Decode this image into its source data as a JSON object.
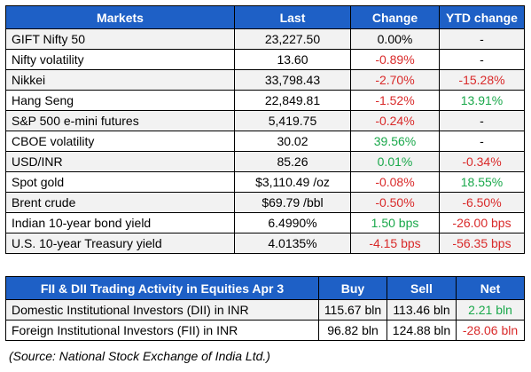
{
  "markets": {
    "headers": [
      "Markets",
      "Last",
      "Change",
      "YTD change"
    ],
    "rows": [
      {
        "name": "GIFT Nifty 50",
        "last": "23,227.50",
        "change": "0.00%",
        "change_tone": "neu",
        "ytd": "-",
        "ytd_tone": "neu"
      },
      {
        "name": "Nifty volatility",
        "last": "13.60",
        "change": "-0.89%",
        "change_tone": "neg",
        "ytd": "-",
        "ytd_tone": "neu"
      },
      {
        "name": "Nikkei",
        "last": "33,798.43",
        "change": "-2.70%",
        "change_tone": "neg",
        "ytd": "-15.28%",
        "ytd_tone": "neg"
      },
      {
        "name": "Hang Seng",
        "last": "22,849.81",
        "change": "-1.52%",
        "change_tone": "neg",
        "ytd": "13.91%",
        "ytd_tone": "pos"
      },
      {
        "name": "S&P 500 e-mini futures",
        "last": "5,419.75",
        "change": "-0.24%",
        "change_tone": "neg",
        "ytd": "-",
        "ytd_tone": "neu"
      },
      {
        "name": "CBOE volatility",
        "last": "30.02",
        "change": "39.56%",
        "change_tone": "pos",
        "ytd": "-",
        "ytd_tone": "neu"
      },
      {
        "name": "USD/INR",
        "last": "85.26",
        "change": "0.01%",
        "change_tone": "pos",
        "ytd": "-0.34%",
        "ytd_tone": "neg"
      },
      {
        "name": "Spot gold",
        "last": "$3,110.49 /oz",
        "change": "-0.08%",
        "change_tone": "neg",
        "ytd": "18.55%",
        "ytd_tone": "pos"
      },
      {
        "name": "Brent crude",
        "last": "$69.79 /bbl",
        "change": "-0.50%",
        "change_tone": "neg",
        "ytd": "-6.50%",
        "ytd_tone": "neg"
      },
      {
        "name": "Indian 10-year bond yield",
        "last": "6.4990%",
        "change": "1.50 bps",
        "change_tone": "pos",
        "ytd": "-26.00 bps",
        "ytd_tone": "neg"
      },
      {
        "name": "U.S. 10-year Treasury yield",
        "last": "4.0135%",
        "change": "-4.15 bps",
        "change_tone": "neg",
        "ytd": "-56.35 bps",
        "ytd_tone": "neg"
      }
    ]
  },
  "fii": {
    "headers": [
      "FII & DII Trading Activity in Equities Apr 3",
      "Buy",
      "Sell",
      "Net"
    ],
    "rows": [
      {
        "name": "Domestic Institutional Investors (DII) in INR",
        "buy": "115.67 bln",
        "sell": "113.46 bln",
        "net": "2.21 bln",
        "net_tone": "pos"
      },
      {
        "name": "Foreign Institutional Investors (FII) in INR",
        "buy": "96.82 bln",
        "sell": "124.88 bln",
        "net": "-28.06 bln",
        "net_tone": "neg"
      }
    ]
  },
  "source": "(Source: National Stock Exchange of India Ltd.)",
  "colors": {
    "header_bg": "#1e60c6",
    "negative": "#d92a2a",
    "positive": "#1aa84b",
    "stripe": "#f2f2f2"
  }
}
